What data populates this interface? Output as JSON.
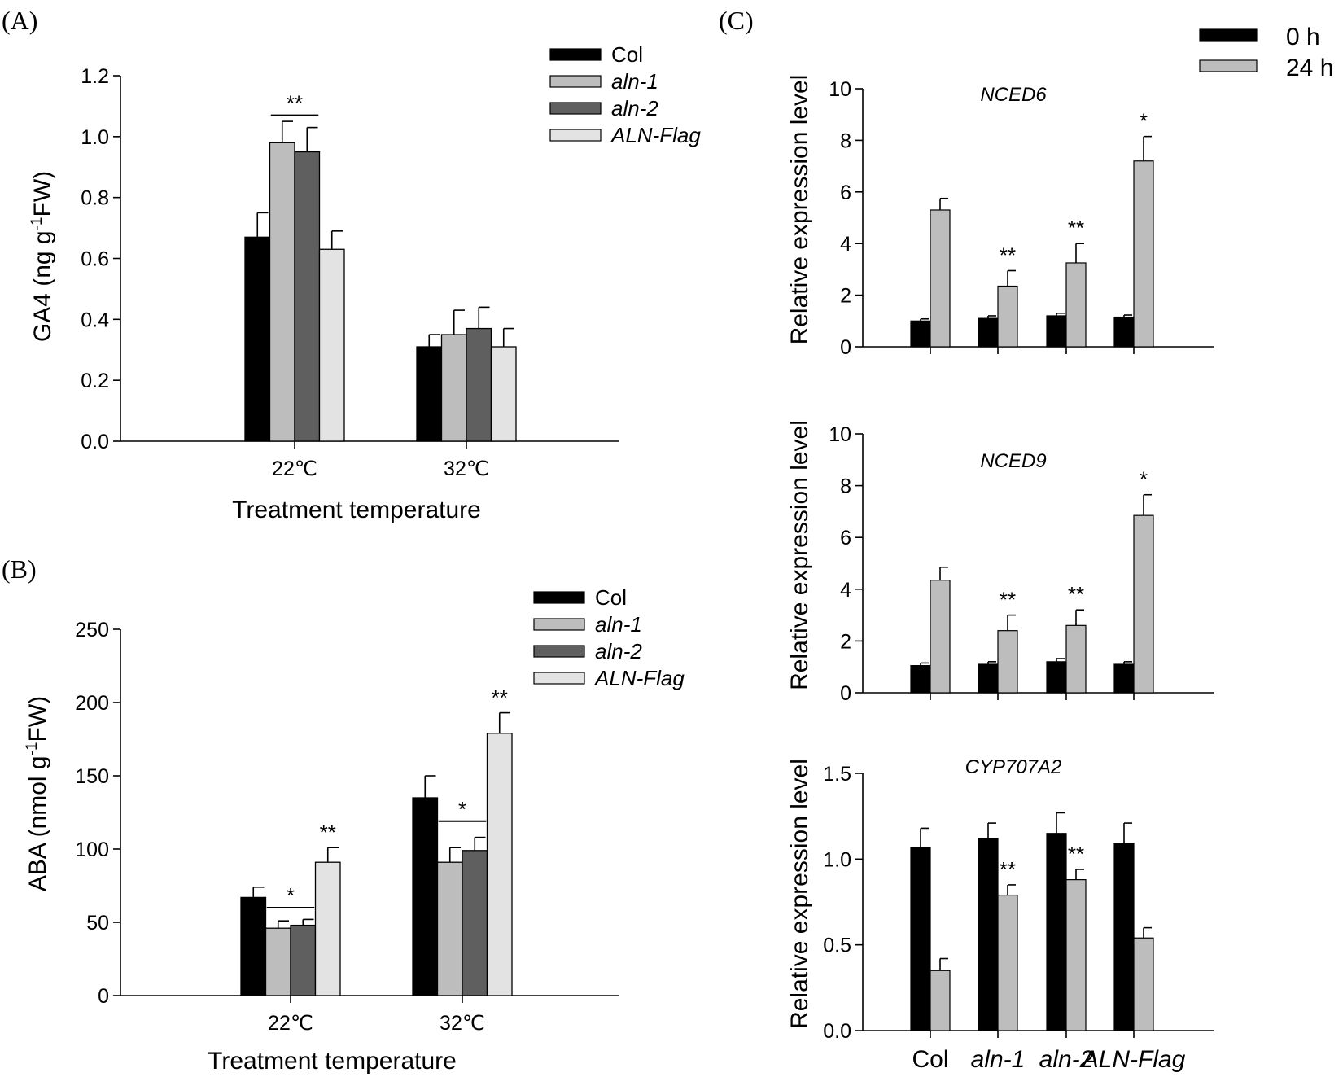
{
  "figure": {
    "colors": {
      "col": "#000000",
      "aln1": "#bdbdbd",
      "aln2": "#5f5f5f",
      "alnflag": "#e3e3e3",
      "h0": "#000000",
      "h24": "#bdbdbd"
    }
  },
  "chart_data": [
    {
      "id": "A",
      "panel_label": "(A)",
      "type": "bar",
      "xlabel": "Treatment temperature",
      "ylabel_main": "GA4 (ng g",
      "ylabel_sup": "-1",
      "ylabel_end": "FW)",
      "ylim": [
        0,
        1.2
      ],
      "yticks": [
        "0.0",
        "0.2",
        "0.4",
        "0.6",
        "0.8",
        "1.0",
        "1.2"
      ],
      "categories": [
        "22℃",
        "32℃"
      ],
      "legend_position": "top-right",
      "series": [
        {
          "name": "Col",
          "italic": false,
          "color_key": "col",
          "values": [
            0.67,
            0.31
          ],
          "errors": [
            0.08,
            0.04
          ]
        },
        {
          "name": "aln-1",
          "italic": true,
          "color_key": "aln1",
          "values": [
            0.98,
            0.35
          ],
          "errors": [
            0.07,
            0.08
          ]
        },
        {
          "name": "aln-2",
          "italic": true,
          "color_key": "aln2",
          "values": [
            0.95,
            0.37
          ],
          "errors": [
            0.08,
            0.07
          ]
        },
        {
          "name": "ALN-Flag",
          "italic": true,
          "color_key": "alnflag",
          "values": [
            0.63,
            0.31
          ],
          "errors": [
            0.06,
            0.06
          ]
        }
      ],
      "annotations": [
        {
          "category": 0,
          "from_series": 1,
          "to_series": 2,
          "text": "**",
          "line": true,
          "y": 1.07
        }
      ]
    },
    {
      "id": "B",
      "panel_label": "(B)",
      "type": "bar",
      "xlabel": "Treatment temperature",
      "ylabel_main": "ABA  (nmol g",
      "ylabel_sup": "-1",
      "ylabel_end": "FW)",
      "ylim": [
        0,
        250
      ],
      "yticks": [
        "0",
        "50",
        "100",
        "150",
        "200",
        "250"
      ],
      "categories": [
        "22℃",
        "32℃"
      ],
      "legend_position": "top-right",
      "series": [
        {
          "name": "Col",
          "italic": false,
          "color_key": "col",
          "values": [
            67,
            135
          ],
          "errors": [
            7,
            15
          ]
        },
        {
          "name": "aln-1",
          "italic": true,
          "color_key": "aln1",
          "values": [
            46,
            91
          ],
          "errors": [
            5,
            10
          ]
        },
        {
          "name": "aln-2",
          "italic": true,
          "color_key": "aln2",
          "values": [
            48,
            99
          ],
          "errors": [
            4,
            9
          ]
        },
        {
          "name": "ALN-Flag",
          "italic": true,
          "color_key": "alnflag",
          "values": [
            91,
            179
          ],
          "errors": [
            10,
            14
          ]
        }
      ],
      "annotations": [
        {
          "category": 0,
          "from_series": 1,
          "to_series": 2,
          "text": "*",
          "line": true,
          "y": 60
        },
        {
          "category": 0,
          "from_series": 3,
          "to_series": 3,
          "text": "**",
          "line": false,
          "y": 103
        },
        {
          "category": 1,
          "from_series": 1,
          "to_series": 2,
          "text": "*",
          "line": true,
          "y": 119
        },
        {
          "category": 1,
          "from_series": 3,
          "to_series": 3,
          "text": "**",
          "line": false,
          "y": 195
        }
      ]
    },
    {
      "id": "C1",
      "panel_label": "(C)",
      "type": "bar",
      "subtitle": "NCED6",
      "ylabel": "Relative expression level",
      "ylim": [
        0,
        10
      ],
      "yticks": [
        "0",
        "2",
        "4",
        "6",
        "8",
        "10"
      ],
      "categories": [
        "Col",
        "aln-1",
        "aln-2",
        "ALN-Flag"
      ],
      "legend_position": "top-right",
      "series": [
        {
          "name": "0 h",
          "color_key": "h0",
          "values": [
            1.0,
            1.1,
            1.2,
            1.15
          ],
          "errors": [
            0.08,
            0.1,
            0.1,
            0.08
          ]
        },
        {
          "name": "24 h",
          "color_key": "h24",
          "values": [
            5.3,
            2.35,
            3.25,
            7.2
          ],
          "errors": [
            0.45,
            0.6,
            0.75,
            0.95
          ]
        }
      ],
      "annotations": [
        {
          "category": 1,
          "text": "**"
        },
        {
          "category": 2,
          "text": "**"
        },
        {
          "category": 3,
          "text": "*"
        }
      ]
    },
    {
      "id": "C2",
      "type": "bar",
      "subtitle": "NCED9",
      "ylabel": "Relative expression level",
      "ylim": [
        0,
        10
      ],
      "yticks": [
        "0",
        "2",
        "4",
        "6",
        "8",
        "10"
      ],
      "categories": [
        "Col",
        "aln-1",
        "aln-2",
        "ALN-Flag"
      ],
      "series": [
        {
          "name": "0 h",
          "color_key": "h0",
          "values": [
            1.05,
            1.1,
            1.2,
            1.1
          ],
          "errors": [
            0.1,
            0.1,
            0.12,
            0.1
          ]
        },
        {
          "name": "24 h",
          "color_key": "h24",
          "values": [
            4.35,
            2.4,
            2.6,
            6.85
          ],
          "errors": [
            0.5,
            0.6,
            0.6,
            0.8
          ]
        }
      ],
      "annotations": [
        {
          "category": 1,
          "text": "**"
        },
        {
          "category": 2,
          "text": "**"
        },
        {
          "category": 3,
          "text": "*"
        }
      ]
    },
    {
      "id": "C3",
      "type": "bar",
      "subtitle": "CYP707A2",
      "ylabel": "Relative expression level",
      "ylim": [
        0,
        1.5
      ],
      "yticks": [
        "0.0",
        "0.5",
        "1.0",
        "1.5"
      ],
      "categories": [
        "Col",
        "aln-1",
        "aln-2",
        "ALN-Flag"
      ],
      "category_italic": [
        false,
        true,
        true,
        true
      ],
      "series": [
        {
          "name": "0 h",
          "color_key": "h0",
          "values": [
            1.07,
            1.12,
            1.15,
            1.09
          ],
          "errors": [
            0.11,
            0.09,
            0.12,
            0.12
          ]
        },
        {
          "name": "24 h",
          "color_key": "h24",
          "values": [
            0.35,
            0.79,
            0.88,
            0.54
          ],
          "errors": [
            0.07,
            0.06,
            0.06,
            0.06
          ]
        }
      ],
      "annotations": [
        {
          "category": 1,
          "text": "**"
        },
        {
          "category": 2,
          "text": "**"
        }
      ]
    }
  ]
}
